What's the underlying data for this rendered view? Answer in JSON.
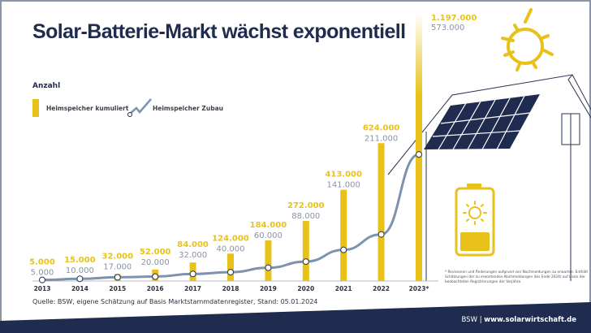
{
  "title": "Solar-Batterie-Markt wächst exponentiell",
  "legend": {
    "unit": "Anzahl",
    "bar_label": "Heimspeicher kumuliert",
    "line_label": "Heimspeicher Zubau"
  },
  "source": "Quelle: BSW, eigene Schätzung auf Basis Marktstammdatenregister, Stand: 05.01.2024",
  "footnote": "* Revisionen und Änderungen aufgrund von Nachmeldungen zu erwarten. Enthält Schätzungen der zu erwartenden Nachmeldungen (bis Ende 2024) auf Basis der beobachteten Registrierungen der Vorjahre.",
  "footer": {
    "org": "BSW",
    "separator": "|",
    "url": "www.solarwirtschaft.de"
  },
  "colors": {
    "bar": "#e8c21a",
    "line": "#7b93ad",
    "title": "#1f2b4f",
    "footer_bg": "#1f2b4f",
    "gray_label": "#8a93a3"
  },
  "chart_data": {
    "type": "bar+line",
    "categories": [
      "2013",
      "2014",
      "2015",
      "2016",
      "2017",
      "2018",
      "2019",
      "2020",
      "2021",
      "2022",
      "2023*"
    ],
    "series": [
      {
        "name": "Heimspeicher kumuliert",
        "type": "bar",
        "values": [
          5000,
          15000,
          32000,
          52000,
          84000,
          124000,
          184000,
          272000,
          413000,
          624000,
          1197000
        ],
        "labels": [
          "5.000",
          "15.000",
          "32.000",
          "52.000",
          "84.000",
          "124.000",
          "184.000",
          "272.000",
          "413.000",
          "624.000",
          "1.197.000"
        ]
      },
      {
        "name": "Heimspeicher Zubau",
        "type": "line",
        "values": [
          5000,
          10000,
          17000,
          20000,
          32000,
          40000,
          60000,
          88000,
          141000,
          211000,
          573000
        ],
        "labels": [
          "5.000",
          "10.000",
          "17.000",
          "20.000",
          "32.000",
          "40.000",
          "60.000",
          "88.000",
          "141.000",
          "211.000",
          "573.000"
        ]
      }
    ],
    "grid": false,
    "legend_placement": "top-left"
  }
}
